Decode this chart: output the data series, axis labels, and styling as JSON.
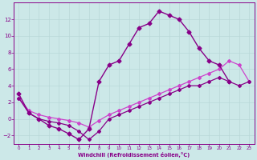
{
  "xlabel": "Windchill (Refroidissement éolien,°C)",
  "bg_color": "#cce8e8",
  "grid_color": "#b8d8d8",
  "line_color": "#880088",
  "line_color2": "#cc44cc",
  "line1_x": [
    0,
    1,
    2,
    3,
    4,
    5,
    6,
    7,
    8,
    9,
    10,
    11,
    12,
    13,
    14,
    15,
    16,
    17,
    18,
    19,
    20,
    21,
    22,
    23
  ],
  "line1_y": [
    3.0,
    0.7,
    0.0,
    -0.8,
    -1.2,
    -1.8,
    -2.5,
    -1.2,
    4.5,
    6.5,
    7.0,
    9.0,
    11.0,
    11.5,
    13.0,
    12.5,
    12.0,
    10.5,
    8.5,
    7.0,
    6.5,
    4.5,
    null,
    null
  ],
  "line2_x": [
    0,
    1,
    2,
    3,
    4,
    5,
    6,
    7,
    8,
    9,
    10,
    11,
    12,
    13,
    14,
    15,
    16,
    17,
    18,
    19,
    20,
    21,
    22,
    23
  ],
  "line2_y": [
    2.5,
    1.0,
    0.5,
    0.2,
    0.0,
    -0.2,
    -0.5,
    -1.0,
    -0.2,
    0.5,
    1.0,
    1.5,
    2.0,
    2.5,
    3.0,
    3.5,
    4.0,
    4.5,
    5.0,
    5.5,
    6.0,
    7.0,
    6.5,
    4.5
  ],
  "line3_x": [
    0,
    1,
    2,
    3,
    4,
    5,
    6,
    7,
    8,
    9,
    10,
    11,
    12,
    13,
    14,
    15,
    16,
    17,
    18,
    19,
    20,
    21,
    22,
    23
  ],
  "line3_y": [
    2.5,
    0.7,
    0.0,
    -0.3,
    -0.5,
    -0.8,
    -1.5,
    -2.5,
    -1.5,
    0.0,
    0.5,
    1.0,
    1.5,
    2.0,
    2.5,
    3.0,
    3.5,
    4.0,
    4.0,
    4.5,
    5.0,
    4.5,
    4.0,
    4.5
  ],
  "xlim": [
    -0.5,
    23.5
  ],
  "ylim": [
    -3.0,
    14.0
  ],
  "yticks": [
    -2,
    0,
    2,
    4,
    6,
    8,
    10,
    12
  ],
  "xticks": [
    0,
    1,
    2,
    3,
    4,
    5,
    6,
    7,
    8,
    9,
    10,
    11,
    12,
    13,
    14,
    15,
    16,
    17,
    18,
    19,
    20,
    21,
    22,
    23
  ]
}
